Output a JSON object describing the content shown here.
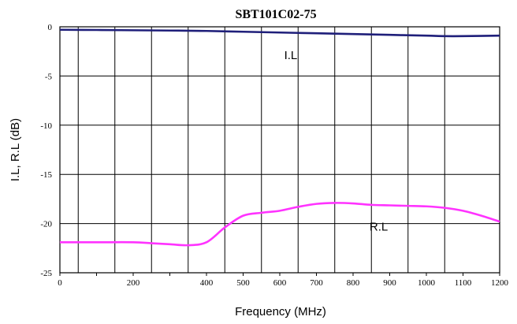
{
  "chart_data": {
    "type": "line",
    "title": "SBT101C02-75",
    "xlabel": "Frequency (MHz)",
    "ylabel": "I.L, R.L (dB)",
    "xlim": [
      0,
      1200
    ],
    "ylim": [
      -25,
      0
    ],
    "x_ticks": [
      0,
      100,
      200,
      300,
      400,
      500,
      600,
      700,
      800,
      900,
      1000,
      1100,
      1200
    ],
    "x_tick_labels": [
      "0",
      "",
      "200",
      "",
      "400",
      "500",
      "600",
      "700",
      "800",
      "900",
      "1000",
      "1100",
      "1200"
    ],
    "y_ticks": [
      0,
      -5,
      -10,
      -15,
      -20,
      -25
    ],
    "y_tick_labels": [
      "0",
      "-5",
      "-10",
      "-15",
      "-20",
      "-25"
    ],
    "x_grid": [
      0,
      50,
      150,
      250,
      350,
      450,
      550,
      650,
      750,
      850,
      950,
      1050,
      1200
    ],
    "grid": true,
    "legend": "none",
    "series": [
      {
        "name": "I.L",
        "color": "#1f1f7a",
        "x": [
          0,
          100,
          200,
          300,
          400,
          500,
          600,
          700,
          800,
          900,
          1000,
          1050,
          1100,
          1200
        ],
        "y": [
          -0.3,
          -0.32,
          -0.35,
          -0.38,
          -0.42,
          -0.5,
          -0.58,
          -0.66,
          -0.74,
          -0.82,
          -0.9,
          -0.95,
          -0.95,
          -0.9
        ]
      },
      {
        "name": "R.L",
        "color": "#ff33ff",
        "x": [
          0,
          100,
          200,
          250,
          300,
          350,
          400,
          450,
          500,
          550,
          600,
          650,
          700,
          750,
          800,
          850,
          900,
          950,
          1000,
          1050,
          1100,
          1150,
          1200
        ],
        "y": [
          -21.9,
          -21.9,
          -21.9,
          -22.0,
          -22.1,
          -22.2,
          -21.9,
          -20.4,
          -19.2,
          -18.9,
          -18.7,
          -18.3,
          -18.0,
          -17.9,
          -17.95,
          -18.1,
          -18.15,
          -18.2,
          -18.25,
          -18.4,
          -18.7,
          -19.2,
          -19.8
        ]
      }
    ],
    "annotations": [
      {
        "text": "I.L",
        "x": 630,
        "y": -3.3
      },
      {
        "text": "R.L",
        "x": 870,
        "y": -20.7
      }
    ]
  }
}
